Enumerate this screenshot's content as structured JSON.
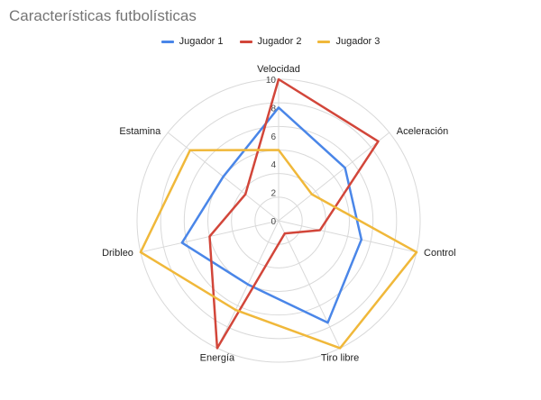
{
  "chart_data": {
    "type": "radar",
    "title": "Características futbolísticas",
    "axes": [
      "Velocidad",
      "Aceleración",
      "Control",
      "Tiro libre",
      "Energía",
      "Dribleo",
      "Estamina"
    ],
    "range": [
      0,
      10
    ],
    "ticks": [
      "0",
      "2",
      "4",
      "6",
      "8",
      "10"
    ],
    "grid": true,
    "legend_position": "top",
    "series": [
      {
        "name": "Jugador 1",
        "color": "#4A86E8",
        "values": [
          8,
          6,
          6,
          8,
          5,
          7,
          5
        ]
      },
      {
        "name": "Jugador 2",
        "color": "#D2463A",
        "values": [
          10,
          9,
          3,
          1,
          10,
          5,
          3
        ]
      },
      {
        "name": "Jugador 3",
        "color": "#F0B83A",
        "values": [
          5,
          3,
          10,
          10,
          7,
          10,
          8
        ]
      }
    ]
  }
}
